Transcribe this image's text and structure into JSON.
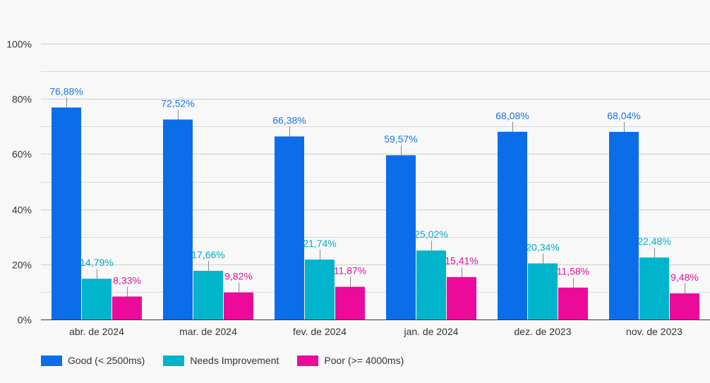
{
  "chart_data": {
    "type": "bar",
    "categories": [
      "abr. de 2024",
      "mar. de 2024",
      "fev. de 2024",
      "jan. de 2024",
      "dez. de 2023",
      "nov. de 2023"
    ],
    "series": [
      {
        "name": "Good (< 2500ms)",
        "color": "#0b6ee8",
        "label_color": "#1a73e8",
        "values": [
          76.88,
          72.52,
          66.38,
          59.57,
          68.08,
          68.04
        ],
        "labels": [
          "76,88%",
          "72,52%",
          "66,38%",
          "59,57%",
          "68,08%",
          "68,04%"
        ]
      },
      {
        "name": "Needs Improvement",
        "color": "#00b4cc",
        "label_color": "#00acc1",
        "values": [
          14.79,
          17.66,
          21.74,
          25.02,
          20.34,
          22.48
        ],
        "labels": [
          "14,79%",
          "17,66%",
          "21,74%",
          "25,02%",
          "20,34%",
          "22,48%"
        ]
      },
      {
        "name": "Poor (>= 4000ms)",
        "color": "#ec0a9b",
        "label_color": "#e0119a",
        "values": [
          8.33,
          9.82,
          11.87,
          15.41,
          11.58,
          9.48
        ],
        "labels": [
          "8,33%",
          "9,82%",
          "11,87%",
          "15,41%",
          "11,58%",
          "9,48%"
        ]
      }
    ],
    "y_ticks": [
      {
        "value": 0,
        "label": "0%"
      },
      {
        "value": 20,
        "label": "20%"
      },
      {
        "value": 40,
        "label": "40%"
      },
      {
        "value": 60,
        "label": "60%"
      },
      {
        "value": 80,
        "label": "80%"
      },
      {
        "value": 100,
        "label": "100%"
      }
    ],
    "y_minor_ticks": [
      10,
      30,
      50,
      70,
      90
    ],
    "ylim": [
      0,
      100
    ],
    "title": "",
    "xlabel": "",
    "ylabel": "",
    "grid": true,
    "legend_position": "bottom-left"
  }
}
